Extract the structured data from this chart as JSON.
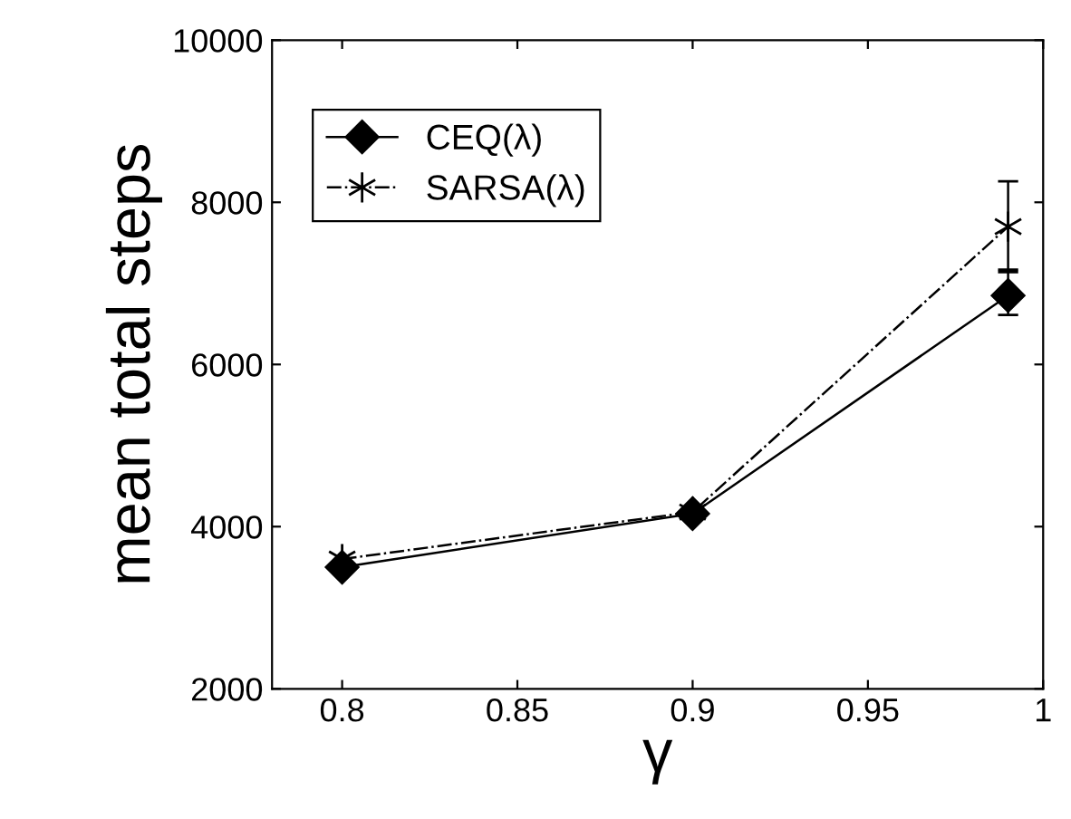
{
  "chart_data": {
    "type": "line",
    "xlabel": "γ",
    "ylabel": "mean total steps",
    "x": [
      0.8,
      0.9,
      0.99
    ],
    "series": [
      {
        "name": "CEQ(λ)",
        "color": "#000000",
        "values": [
          3500,
          4160,
          6850
        ],
        "errors": [
          null,
          null,
          [
            6610,
            7140
          ]
        ],
        "marker": "diamond",
        "line_style": "solid"
      },
      {
        "name": "SARSA(λ)",
        "color": "#000000",
        "values": [
          3600,
          4180,
          7700
        ],
        "errors": [
          null,
          null,
          [
            7170,
            8260
          ]
        ],
        "marker": "cross",
        "line_style": "dashdot"
      }
    ],
    "xlim": [
      0.78,
      1.0
    ],
    "xticks": [
      0.8,
      0.85,
      0.9,
      0.95,
      {
        "value": 1.0,
        "label": "1"
      }
    ],
    "ylim": [
      2000,
      10000
    ],
    "yticks": [
      2000,
      4000,
      6000,
      8000,
      10000
    ],
    "grid": false,
    "legend": "top left"
  }
}
